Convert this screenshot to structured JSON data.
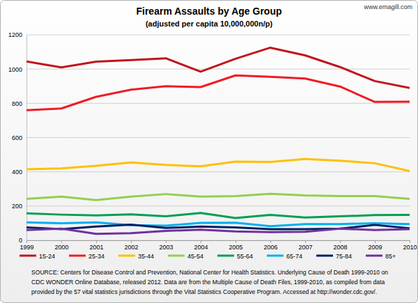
{
  "chart_data": {
    "type": "line",
    "title": "Firearm Assaults by Age Group",
    "subtitle": "(adjusted per capita 10,000,000n/p)",
    "watermark": "www.emagill.com",
    "source": [
      "SOURCE: Centers for Disease Control and Prevention, National Center for Health Statistics. Underlying Cause of Death 1999-2010 on",
      "CDC WONDER Online Database, released 2012. Data are from the Multiple Cause of Death Files, 1999-2010, as compiled from data",
      "provided by the 57 vital statistics jurisdictions through the Vital Statistics Cooperative Program. Accessed at http://wonder.cdc.gov/."
    ],
    "x": [
      1999,
      2000,
      2001,
      2002,
      2003,
      2004,
      2005,
      2006,
      2007,
      2008,
      2009,
      2010
    ],
    "xlim": [
      1999,
      2010
    ],
    "xticks": [
      1999,
      2000,
      2001,
      2002,
      2003,
      2004,
      2005,
      2006,
      2007,
      2008,
      2009,
      2010
    ],
    "ylim": [
      0,
      1200
    ],
    "yticks": [
      0,
      200,
      400,
      600,
      800,
      1000,
      1200
    ],
    "grid": true,
    "legend": "bottom",
    "series": [
      {
        "name": "15-24",
        "color": "#c0141e",
        "values": [
          1045,
          1010,
          1043,
          1053,
          1063,
          985,
          1060,
          1125,
          1080,
          1012,
          930,
          890
        ]
      },
      {
        "name": "25-34",
        "color": "#ee1c24",
        "values": [
          760,
          770,
          838,
          880,
          900,
          895,
          963,
          955,
          945,
          898,
          808,
          810
        ]
      },
      {
        "name": "35-44",
        "color": "#ffc000",
        "values": [
          415,
          420,
          435,
          455,
          440,
          432,
          460,
          458,
          475,
          465,
          450,
          405
        ]
      },
      {
        "name": "45-54",
        "color": "#92d050",
        "values": [
          242,
          255,
          235,
          255,
          270,
          255,
          258,
          272,
          262,
          258,
          258,
          242
        ]
      },
      {
        "name": "55-64",
        "color": "#00a050",
        "values": [
          158,
          150,
          145,
          152,
          140,
          160,
          130,
          148,
          133,
          140,
          147,
          148
        ]
      },
      {
        "name": "65-74",
        "color": "#00b0f0",
        "values": [
          105,
          100,
          105,
          88,
          85,
          102,
          103,
          82,
          95,
          95,
          100,
          95
        ]
      },
      {
        "name": "75-84",
        "color": "#002060",
        "values": [
          75,
          65,
          80,
          92,
          72,
          80,
          75,
          65,
          65,
          68,
          90,
          70
        ]
      },
      {
        "name": "85+",
        "color": "#7030a0",
        "values": [
          60,
          68,
          38,
          42,
          55,
          62,
          52,
          48,
          50,
          68,
          60,
          65
        ]
      }
    ]
  }
}
